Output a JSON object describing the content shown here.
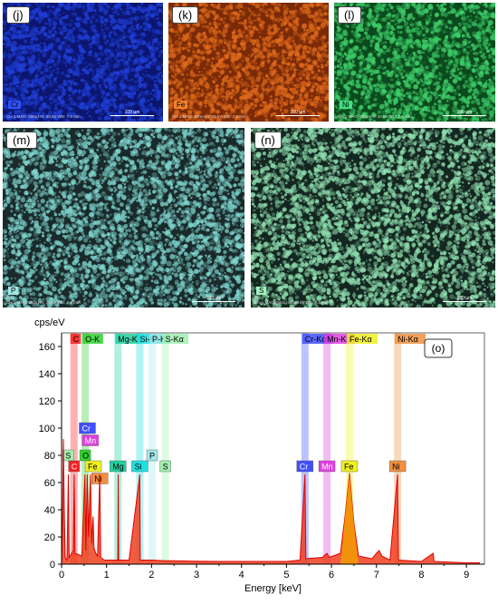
{
  "panels": [
    {
      "label": "(j)",
      "element": "Cr",
      "color": "#1f3fd8",
      "bg": "#0c1670",
      "tagbg": "#3050ff",
      "info": "CH 1   MAG: 500x   HV: 20 kV   WD: 7.8 mm",
      "scale": "100 µm"
    },
    {
      "label": "(k)",
      "element": "Fe",
      "color": "#e06a1c",
      "bg": "#7a2a06",
      "tagbg": "#f08030",
      "info": "CH 1   MAG: 500x   HV: 20 kV   WD: 7.8 mm",
      "scale": "100 µm"
    },
    {
      "label": "(l)",
      "element": "Ni",
      "color": "#3fcf6a",
      "bg": "#0b4a1d",
      "tagbg": "#40e080",
      "info": "CH 1   MAG: 500x   HV: 20 kV   WD: 7.8 mm",
      "scale": "100 µm"
    },
    {
      "label": "(m)",
      "element": "P",
      "color": "#7fd6d0",
      "bg": "#1a2a2a",
      "tagbg": "#9fe8e4",
      "info": "CH 1   MAG: 500x   HV: 20 kV   WD: 7.8 mm",
      "scale": "100 µm",
      "sub": "M1"
    },
    {
      "label": "(n)",
      "element": "S",
      "color": "#8fe0b0",
      "bg": "#142620",
      "tagbg": "#a0f0c0",
      "info": "CH 1   MAG: 500x   HV: 20 kV   WD: 7.8 mm",
      "scale": "100 µm",
      "sub": "M1"
    }
  ],
  "chart_data": {
    "type": "line",
    "panel_label": "(o)",
    "ylabel": "cps/eV",
    "xlabel": "Energy [keV]",
    "xlim": [
      0,
      9.4
    ],
    "ylim": [
      0,
      170
    ],
    "xticks": [
      0,
      1,
      2,
      3,
      4,
      5,
      6,
      7,
      8,
      9
    ],
    "yticks": [
      0,
      20,
      40,
      60,
      80,
      100,
      120,
      140,
      160
    ],
    "bands": [
      {
        "label": "C",
        "x": 0.277,
        "color": "#ff2020"
      },
      {
        "label": "O-K",
        "x": 0.525,
        "color": "#30d030"
      },
      {
        "label": "Mg-K",
        "x": 1.254,
        "color": "#20d0a0"
      },
      {
        "label": "Si-K",
        "x": 1.74,
        "color": "#20e0e0"
      },
      {
        "label": "P-K",
        "x": 2.013,
        "color": "#a0e8e8"
      },
      {
        "label": "S-Kα",
        "x": 2.307,
        "color": "#a0f0b0"
      },
      {
        "label": "Cr-Kα",
        "x": 5.41,
        "color": "#4050ff"
      },
      {
        "label": "Mn-Kα",
        "x": 5.899,
        "color": "#e040e0"
      },
      {
        "label": "Fe-Kα",
        "x": 6.4,
        "color": "#f0f020"
      },
      {
        "label": "Ni-Kα",
        "x": 7.47,
        "color": "#f09040"
      }
    ],
    "top_labels": [
      "C",
      "O-K",
      "Mg-K",
      "Si-K",
      "P-K",
      "S-Kα",
      "Cr-Kα",
      "Mn-Kα",
      "Fe-Kα",
      "Ni-Kα"
    ],
    "markers": [
      {
        "label": "Cr",
        "x": 0.573,
        "y": 100,
        "color": "#4050ff",
        "fg": "#fff"
      },
      {
        "label": "Mn",
        "x": 0.637,
        "y": 91,
        "color": "#e040e0",
        "fg": "#fff"
      },
      {
        "label": "S",
        "x": 0.149,
        "y": 80,
        "color": "#a0f0b0",
        "fg": "#000"
      },
      {
        "label": "O",
        "x": 0.525,
        "y": 80,
        "color": "#30d030",
        "fg": "#000"
      },
      {
        "label": "Fe",
        "x": 0.705,
        "y": 72,
        "color": "#f0f020",
        "fg": "#000"
      },
      {
        "label": "Ni",
        "x": 0.851,
        "y": 63,
        "color": "#f09040",
        "fg": "#000"
      },
      {
        "label": "C",
        "x": 0.277,
        "y": 72,
        "color": "#ff2020",
        "fg": "#fff"
      },
      {
        "label": "Mg",
        "x": 1.254,
        "y": 72,
        "color": "#20d0a0",
        "fg": "#000"
      },
      {
        "label": "Si",
        "x": 1.74,
        "y": 72,
        "color": "#20e0e0",
        "fg": "#000"
      },
      {
        "label": "P",
        "x": 2.013,
        "y": 80,
        "color": "#a0e8e8",
        "fg": "#000"
      },
      {
        "label": "S",
        "x": 2.307,
        "y": 72,
        "color": "#a0f0b0",
        "fg": "#000"
      },
      {
        "label": "Cr",
        "x": 5.41,
        "y": 72,
        "color": "#4050ff",
        "fg": "#fff"
      },
      {
        "label": "Mn",
        "x": 5.899,
        "y": 72,
        "color": "#e040e0",
        "fg": "#fff"
      },
      {
        "label": "Fe",
        "x": 6.4,
        "y": 72,
        "color": "#f0f020",
        "fg": "#000"
      },
      {
        "label": "Ni",
        "x": 7.47,
        "y": 72,
        "color": "#f09040",
        "fg": "#000"
      }
    ],
    "spectrum": [
      [
        0,
        0
      ],
      [
        0.02,
        30
      ],
      [
        0.04,
        92
      ],
      [
        0.06,
        40
      ],
      [
        0.08,
        5
      ],
      [
        0.12,
        3
      ],
      [
        0.15,
        66
      ],
      [
        0.17,
        5
      ],
      [
        0.26,
        10
      ],
      [
        0.28,
        66
      ],
      [
        0.3,
        8
      ],
      [
        0.45,
        6
      ],
      [
        0.52,
        66
      ],
      [
        0.54,
        10
      ],
      [
        0.57,
        66
      ],
      [
        0.6,
        20
      ],
      [
        0.64,
        66
      ],
      [
        0.67,
        15
      ],
      [
        0.7,
        35
      ],
      [
        0.72,
        12
      ],
      [
        0.76,
        8
      ],
      [
        0.8,
        6
      ],
      [
        0.85,
        66
      ],
      [
        0.87,
        5
      ],
      [
        0.95,
        3
      ],
      [
        1.1,
        3
      ],
      [
        1.25,
        3
      ],
      [
        1.26,
        66
      ],
      [
        1.27,
        3
      ],
      [
        1.5,
        3
      ],
      [
        1.74,
        66
      ],
      [
        1.75,
        3
      ],
      [
        2.0,
        3
      ],
      [
        2.3,
        2.5
      ],
      [
        2.5,
        2.5
      ],
      [
        3.0,
        2.2
      ],
      [
        3.5,
        2
      ],
      [
        4.0,
        2
      ],
      [
        4.5,
        2
      ],
      [
        5.0,
        2
      ],
      [
        5.3,
        3
      ],
      [
        5.41,
        66
      ],
      [
        5.43,
        4
      ],
      [
        5.8,
        5
      ],
      [
        5.9,
        8
      ],
      [
        5.95,
        5
      ],
      [
        6.2,
        8
      ],
      [
        6.3,
        35
      ],
      [
        6.4,
        67
      ],
      [
        6.5,
        30
      ],
      [
        6.6,
        6
      ],
      [
        6.9,
        4
      ],
      [
        7.0,
        8
      ],
      [
        7.06,
        10
      ],
      [
        7.12,
        6
      ],
      [
        7.3,
        3
      ],
      [
        7.47,
        66
      ],
      [
        7.49,
        3
      ],
      [
        8.0,
        2
      ],
      [
        8.26,
        8
      ],
      [
        8.28,
        2
      ],
      [
        9.0,
        1
      ],
      [
        9.3,
        1
      ]
    ]
  }
}
